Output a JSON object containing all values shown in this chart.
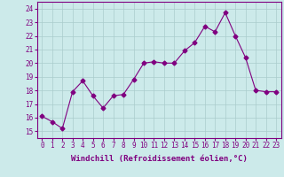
{
  "x": [
    0,
    1,
    2,
    3,
    4,
    5,
    6,
    7,
    8,
    9,
    10,
    11,
    12,
    13,
    14,
    15,
    16,
    17,
    18,
    19,
    20,
    21,
    22,
    23
  ],
  "y": [
    16.1,
    15.7,
    15.2,
    17.9,
    18.7,
    17.6,
    16.7,
    17.6,
    17.7,
    18.8,
    20.0,
    20.1,
    20.0,
    20.0,
    20.9,
    21.5,
    22.7,
    22.3,
    23.7,
    22.0,
    20.4,
    18.0,
    17.9,
    17.9
  ],
  "line_color": "#800080",
  "marker": "D",
  "markersize": 2.5,
  "linewidth": 0.8,
  "bg_color": "#cceaea",
  "grid_color": "#aacccc",
  "xlabel": "Windchill (Refroidissement éolien,°C)",
  "xlabel_fontsize": 6.5,
  "ylabel_ticks": [
    15,
    16,
    17,
    18,
    19,
    20,
    21,
    22,
    23,
    24
  ],
  "xtick_labels": [
    "0",
    "1",
    "2",
    "3",
    "4",
    "5",
    "6",
    "7",
    "8",
    "9",
    "10",
    "11",
    "12",
    "13",
    "14",
    "15",
    "16",
    "17",
    "18",
    "19",
    "20",
    "21",
    "22",
    "23"
  ],
  "ylim": [
    14.5,
    24.5
  ],
  "xlim": [
    -0.5,
    23.5
  ],
  "tick_fontsize": 5.5
}
